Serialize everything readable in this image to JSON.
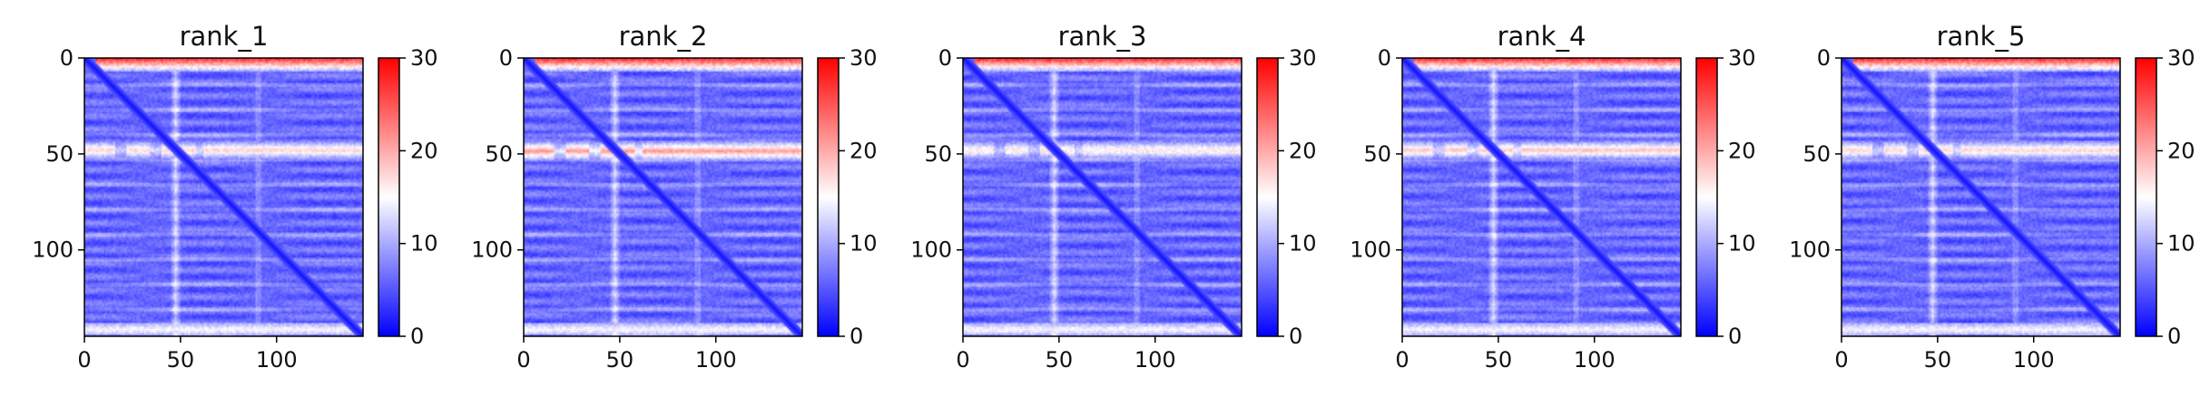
{
  "chart_data": {
    "type": "heatmap",
    "colormap": "bwr",
    "colormap_stops": [
      "#0000ff",
      "#ffffff",
      "#ff0000"
    ],
    "grid": false,
    "legend": "colorbar right of each panel",
    "shared": {
      "matrix_size": 145,
      "xlim": [
        0,
        145
      ],
      "ylim": [
        145,
        0
      ],
      "vmin": 0,
      "vmax": 30,
      "x_ticks": [
        0,
        50,
        100
      ],
      "y_ticks": [
        0,
        50,
        100
      ],
      "colorbar_ticks": [
        0,
        10,
        20,
        30
      ]
    },
    "panels": [
      {
        "title": "rank_1",
        "features": {
          "top_band_rows": [
            0,
            6
          ],
          "top_band_value": 27,
          "mid_band_rows": [
            43,
            52
          ],
          "mid_band_value": 18,
          "bright_col": 47,
          "bright_col_value": 12,
          "bottom_band_rows": [
            138,
            143
          ],
          "bottom_band_value": 15,
          "base_value": 6,
          "diagonal_value": 1
        }
      },
      {
        "title": "rank_2",
        "features": {
          "top_band_rows": [
            0,
            6
          ],
          "top_band_value": 27,
          "mid_band_rows": [
            43,
            53
          ],
          "mid_band_value": 21,
          "bright_col": 47,
          "bright_col_value": 12,
          "bottom_band_rows": [
            138,
            143
          ],
          "bottom_band_value": 15,
          "base_value": 6,
          "diagonal_value": 1
        }
      },
      {
        "title": "rank_3",
        "features": {
          "top_band_rows": [
            0,
            6
          ],
          "top_band_value": 27,
          "mid_band_rows": [
            43,
            52
          ],
          "mid_band_value": 17,
          "bright_col": 47,
          "bright_col_value": 12,
          "bottom_band_rows": [
            138,
            143
          ],
          "bottom_band_value": 15,
          "base_value": 6,
          "diagonal_value": 1
        }
      },
      {
        "title": "rank_4",
        "features": {
          "top_band_rows": [
            0,
            6
          ],
          "top_band_value": 27,
          "mid_band_rows": [
            43,
            52
          ],
          "mid_band_value": 19,
          "bright_col": 47,
          "bright_col_value": 12,
          "bottom_band_rows": [
            138,
            143
          ],
          "bottom_band_value": 15,
          "base_value": 6,
          "diagonal_value": 1
        }
      },
      {
        "title": "rank_5",
        "features": {
          "top_band_rows": [
            0,
            6
          ],
          "top_band_value": 27,
          "mid_band_rows": [
            43,
            52
          ],
          "mid_band_value": 18,
          "bright_col": 47,
          "bright_col_value": 12,
          "bottom_band_rows": [
            138,
            143
          ],
          "bottom_band_value": 15,
          "base_value": 6,
          "diagonal_value": 1
        }
      }
    ]
  }
}
